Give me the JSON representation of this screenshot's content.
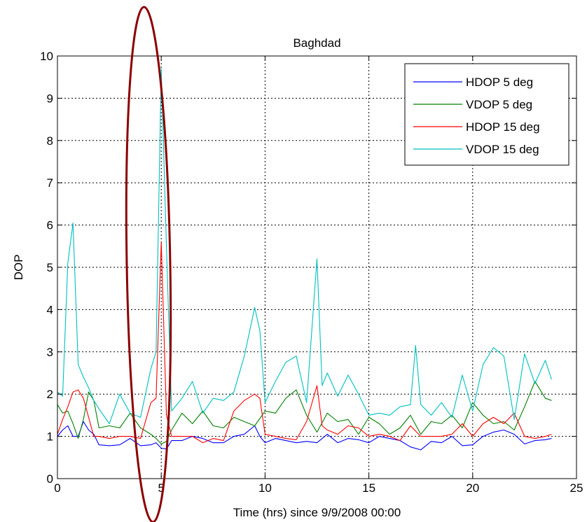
{
  "chart_data": {
    "type": "line",
    "title": "Baghdad",
    "xlabel": "Time (hrs) since 9/9/2008 00:00",
    "ylabel": "DOP",
    "xlim": [
      0,
      25
    ],
    "ylim": [
      0,
      10
    ],
    "xticks": [
      0,
      5,
      10,
      15,
      20,
      25
    ],
    "yticks": [
      0,
      1,
      2,
      3,
      4,
      5,
      6,
      7,
      8,
      9,
      10
    ],
    "grid": true,
    "legend_position": "top-right",
    "series": [
      {
        "name": "HDOP 5 deg",
        "color": "#0000ff",
        "x": [
          0,
          0.25,
          0.5,
          0.75,
          1,
          1.25,
          1.5,
          1.75,
          2,
          2.5,
          3,
          3.5,
          4,
          4.5,
          4.75,
          5,
          5.25,
          5.5,
          6,
          6.5,
          7,
          7.5,
          8,
          8.5,
          9,
          9.5,
          9.75,
          10,
          10.5,
          11,
          11.5,
          12,
          12.5,
          13,
          13.5,
          14,
          14.5,
          15,
          15.5,
          16,
          16.5,
          17,
          17.5,
          18,
          18.5,
          19,
          19.5,
          20,
          20.5,
          21,
          21.5,
          22,
          22.5,
          23,
          23.5,
          23.8
        ],
        "y": [
          1.0,
          1.15,
          1.25,
          1.0,
          1.0,
          1.35,
          1.15,
          1.05,
          0.8,
          0.78,
          0.8,
          0.95,
          0.78,
          0.8,
          0.85,
          0.72,
          0.7,
          0.9,
          0.9,
          1.0,
          0.95,
          0.85,
          0.85,
          1.0,
          1.05,
          1.25,
          1.0,
          0.85,
          0.95,
          0.9,
          0.85,
          0.88,
          0.85,
          1.05,
          0.85,
          0.95,
          0.92,
          0.85,
          1.0,
          0.95,
          0.9,
          0.75,
          0.68,
          0.88,
          0.85,
          1.0,
          0.78,
          0.8,
          1.0,
          1.1,
          1.15,
          1.05,
          0.82,
          0.9,
          0.92,
          0.95
        ]
      },
      {
        "name": "VDOP 5 deg",
        "color": "#008000",
        "x": [
          0,
          0.25,
          0.5,
          0.75,
          1,
          1.25,
          1.5,
          1.75,
          2,
          2.5,
          3,
          3.5,
          4,
          4.5,
          4.75,
          5,
          5.25,
          5.5,
          6,
          6.5,
          7,
          7.5,
          8,
          8.5,
          9,
          9.5,
          10,
          10.5,
          11,
          11.5,
          12,
          12.5,
          13,
          13.5,
          14,
          14.5,
          15,
          15.5,
          16,
          16.5,
          17,
          17.5,
          18,
          18.5,
          19,
          19.5,
          20,
          20.5,
          21,
          21.5,
          22,
          22.5,
          23,
          23.5,
          23.8
        ],
        "y": [
          1.75,
          1.55,
          1.6,
          1.3,
          0.95,
          1.4,
          2.05,
          1.85,
          1.2,
          1.25,
          1.2,
          1.55,
          1.2,
          1.05,
          0.95,
          0.82,
          0.88,
          1.15,
          1.55,
          1.3,
          1.6,
          1.25,
          1.2,
          1.45,
          1.35,
          1.25,
          1.6,
          1.55,
          1.9,
          2.1,
          1.5,
          1.1,
          1.55,
          1.35,
          1.4,
          1.05,
          1.45,
          1.3,
          1.05,
          1.2,
          1.5,
          1.05,
          1.35,
          1.3,
          1.5,
          1.2,
          1.8,
          1.5,
          1.3,
          1.35,
          1.15,
          1.7,
          2.3,
          1.9,
          1.85
        ]
      },
      {
        "name": "HDOP 15 deg",
        "color": "#ff0000",
        "x": [
          0,
          0.25,
          0.5,
          0.75,
          1,
          1.25,
          1.5,
          1.75,
          2,
          2.5,
          3,
          3.5,
          4,
          4.5,
          4.75,
          5,
          5.25,
          5.5,
          6,
          6.5,
          7,
          7.5,
          8,
          8.5,
          9,
          9.5,
          9.75,
          10,
          10.5,
          11,
          11.5,
          12,
          12.5,
          12.75,
          13,
          13.5,
          14,
          14.5,
          15,
          15.5,
          16,
          16.5,
          17,
          17.5,
          18,
          18.5,
          19,
          19.5,
          20,
          20.5,
          21,
          21.5,
          22,
          22.5,
          23,
          23.5,
          23.8
        ],
        "y": [
          1.05,
          1.4,
          1.7,
          2.05,
          2.1,
          1.9,
          1.45,
          1.0,
          1.0,
          0.95,
          1.0,
          1.0,
          0.95,
          1.8,
          1.9,
          5.6,
          1.5,
          1.0,
          1.0,
          1.0,
          0.85,
          0.95,
          0.9,
          1.6,
          1.85,
          2.0,
          1.9,
          1.05,
          1.0,
          0.95,
          0.92,
          1.35,
          2.2,
          1.25,
          1.15,
          1.05,
          1.25,
          1.2,
          1.0,
          1.05,
          1.0,
          0.9,
          1.25,
          1.0,
          1.0,
          1.0,
          1.05,
          1.3,
          1.0,
          1.3,
          1.45,
          1.3,
          1.55,
          1.0,
          0.95,
          1.0,
          1.05
        ]
      },
      {
        "name": "VDOP 15 deg",
        "color": "#00bfbf",
        "x": [
          0,
          0.25,
          0.5,
          0.75,
          1,
          1.25,
          1.5,
          1.75,
          2,
          2.5,
          3,
          3.5,
          4,
          4.5,
          4.75,
          5,
          5.25,
          5.5,
          6,
          6.5,
          7,
          7.5,
          8,
          8.5,
          9,
          9.5,
          9.75,
          10,
          10.5,
          11,
          11.5,
          12,
          12.5,
          12.75,
          13,
          13.5,
          14,
          14.5,
          15,
          15.5,
          16,
          16.5,
          17,
          17.25,
          17.5,
          18,
          18.5,
          19,
          19.5,
          20,
          20.5,
          21,
          21.5,
          22,
          22.5,
          23,
          23.5,
          23.8
        ],
        "y": [
          2.05,
          1.95,
          5.1,
          6.05,
          2.7,
          2.4,
          2.15,
          1.85,
          1.65,
          1.3,
          2.0,
          1.55,
          1.45,
          2.6,
          3.0,
          9.7,
          5.5,
          1.6,
          1.9,
          2.3,
          1.55,
          1.9,
          1.85,
          2.05,
          2.9,
          4.05,
          3.5,
          1.8,
          2.3,
          2.75,
          2.9,
          1.8,
          5.2,
          2.2,
          2.5,
          1.95,
          2.45,
          2.0,
          1.5,
          1.55,
          1.5,
          1.7,
          1.75,
          3.15,
          1.75,
          1.5,
          1.8,
          1.45,
          2.45,
          1.6,
          2.7,
          3.1,
          2.9,
          1.4,
          2.95,
          2.25,
          2.8,
          2.35
        ]
      }
    ]
  }
}
